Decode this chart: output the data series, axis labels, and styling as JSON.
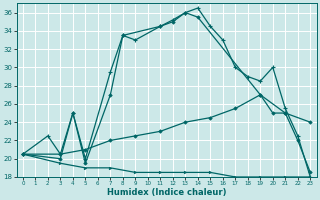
{
  "xlabel": "Humidex (Indice chaleur)",
  "bg_color": "#cce8e8",
  "grid_color": "#ffffff",
  "line_color": "#006666",
  "xlim": [
    -0.5,
    23.5
  ],
  "ylim": [
    18,
    37
  ],
  "xticks": [
    0,
    1,
    2,
    3,
    4,
    5,
    6,
    7,
    8,
    9,
    10,
    11,
    12,
    13,
    14,
    15,
    16,
    17,
    18,
    19,
    20,
    21,
    22,
    23
  ],
  "yticks": [
    18,
    20,
    22,
    24,
    26,
    28,
    30,
    32,
    34,
    36
  ],
  "line1_x": [
    0,
    2,
    3,
    4,
    5,
    7,
    8,
    9,
    11,
    12,
    13,
    14,
    15,
    16,
    17,
    18,
    19,
    20,
    21,
    22,
    23
  ],
  "line1_y": [
    20.5,
    22.5,
    20.5,
    25,
    20.0,
    29.5,
    33.5,
    33.0,
    34.5,
    35.2,
    36.0,
    36.5,
    34.5,
    33.0,
    30.0,
    29.0,
    28.5,
    30.0,
    25.5,
    22.5,
    18.0
  ],
  "line2_x": [
    0,
    3,
    4,
    5,
    7,
    8,
    11,
    12,
    13,
    14,
    19,
    20,
    21,
    22,
    23
  ],
  "line2_y": [
    20.5,
    20.0,
    25.0,
    19.5,
    27.0,
    33.5,
    34.5,
    35.0,
    36.0,
    35.5,
    27.0,
    25.0,
    25.0,
    22.0,
    18.5
  ],
  "line3_x": [
    0,
    3,
    5,
    7,
    9,
    11,
    13,
    15,
    17,
    19,
    21,
    23
  ],
  "line3_y": [
    20.5,
    20.5,
    21.0,
    22.0,
    22.5,
    23.0,
    24.0,
    24.5,
    25.5,
    27.0,
    25.0,
    24.0
  ],
  "line4_x": [
    0,
    3,
    5,
    7,
    9,
    11,
    13,
    15,
    17,
    19,
    21,
    23
  ],
  "line4_y": [
    20.5,
    19.5,
    19.0,
    19.0,
    18.5,
    18.5,
    18.5,
    18.5,
    18.0,
    18.0,
    18.0,
    18.0
  ]
}
